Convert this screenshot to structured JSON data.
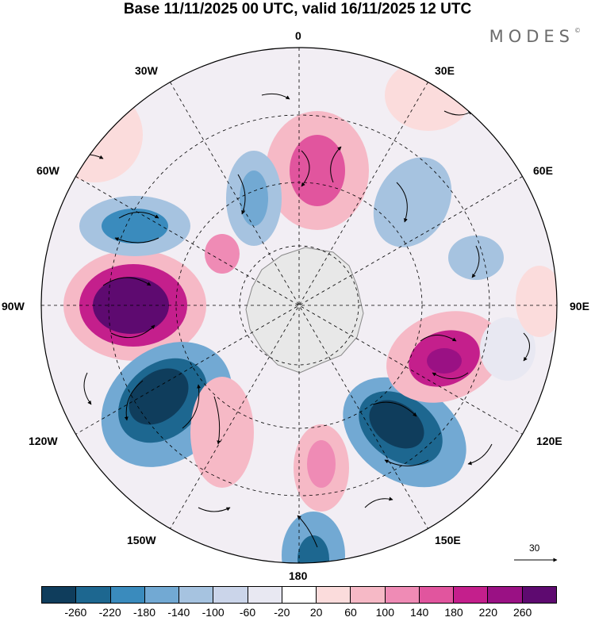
{
  "title": "Base 11/11/2025 00 UTC, valid 16/11/2025 12 UTC",
  "brand": "MODES",
  "brand_mark": "©",
  "longitude_labels": {
    "lon_0": "0",
    "lon_30e": "30E",
    "lon_60e": "60E",
    "lon_90e": "90E",
    "lon_120e": "120E",
    "lon_150e": "150E",
    "lon_180": "180",
    "lon_150w": "150W",
    "lon_120w": "120W",
    "lon_90w": "90W",
    "lon_60w": "60W",
    "lon_30w": "30W"
  },
  "vector_scale_label": "30",
  "colorbar": {
    "colors": [
      "#0f3d5c",
      "#1d6790",
      "#3a8bbd",
      "#72a9d3",
      "#a6c3e0",
      "#cbd5ea",
      "#e8e8f2",
      "#ffffff",
      "#fbdcdc",
      "#f6b9c6",
      "#ef8bb5",
      "#e1559e",
      "#c41f8c",
      "#9a1184",
      "#5e0a70"
    ],
    "ticks": [
      "-260",
      "-220",
      "-180",
      "-140",
      "-100",
      "-60",
      "-20",
      "20",
      "60",
      "100",
      "140",
      "180",
      "220",
      "260"
    ]
  }
}
